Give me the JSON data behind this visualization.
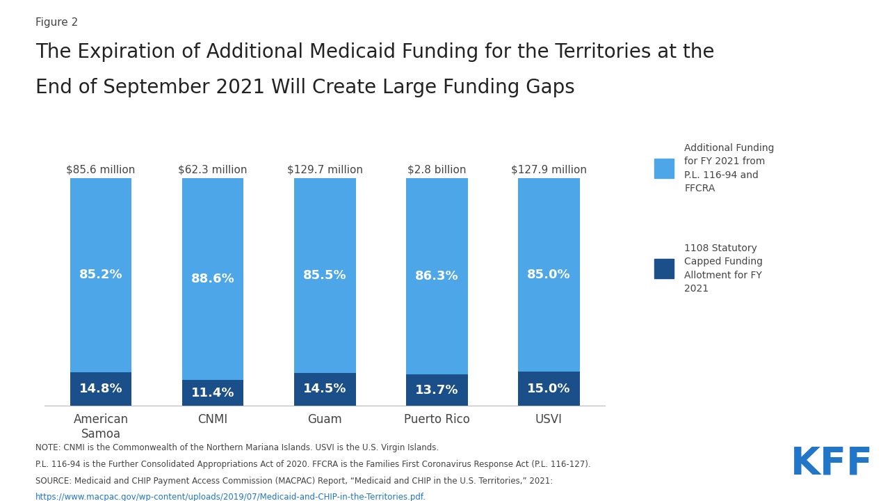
{
  "figure_label": "Figure 2",
  "title_line1": "The Expiration of Additional Medicaid Funding for the Territories at the",
  "title_line2": "End of September 2021 Will Create Large Funding Gaps",
  "categories": [
    "American\nSamoa",
    "CNMI",
    "Guam",
    "Puerto Rico",
    "USVI"
  ],
  "total_labels": [
    "$85.6 million",
    "$62.3 million",
    "$129.7 million",
    "$2.8 billion",
    "$127.9 million"
  ],
  "bottom_values": [
    14.8,
    11.4,
    14.5,
    13.7,
    15.0
  ],
  "top_values": [
    85.2,
    88.6,
    85.5,
    86.3,
    85.0
  ],
  "bottom_labels": [
    "14.8%",
    "11.4%",
    "14.5%",
    "13.7%",
    "15.0%"
  ],
  "top_labels": [
    "85.2%",
    "88.6%",
    "85.5%",
    "86.3%",
    "85.0%"
  ],
  "color_bottom": "#1a4f8a",
  "color_top": "#4da6e8",
  "legend_label_top": "Additional Funding\nfor FY 2021 from\nP.L. 116-94 and\nFFCRA",
  "legend_label_bottom": "1108 Statutory\nCapped Funding\nAllotment for FY\n2021",
  "note_line1": "NOTE: CNMI is the Commonwealth of the Northern Mariana Islands. USVI is the U.S. Virgin Islands.",
  "note_line2": "P.L. 116-94 is the Further Consolidated Appropriations Act of 2020. FFCRA is the Families First Coronavirus Response Act (P.L. 116-127).",
  "note_line3a": "SOURCE: Medicaid and CHIP Payment Access Commission (MACPAC) Report, “Medicaid and CHIP in the U.S. Territories,” 2021: ",
  "note_line3_link": "https://www.macpac.gov/wp-content/uploads/2019/07/Medicaid-and-CHIP-in-the-Territories.pdf.",
  "kff_color": "#2176c7",
  "text_color": "#444444",
  "background_color": "#ffffff",
  "bar_width": 0.55
}
